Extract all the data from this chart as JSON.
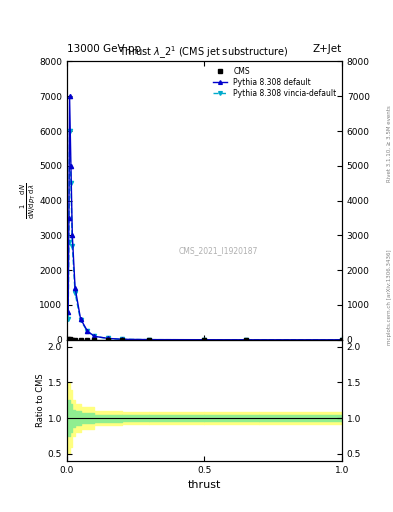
{
  "title_top": "13000 GeV pp",
  "title_right": "Z+Jet",
  "plot_title": "Thrust $\\lambda\\_2^1$ (CMS jet substructure)",
  "xlabel": "thrust",
  "ylabel_ratio": "Ratio to CMS",
  "right_label_top": "Rivet 3.1.10, ≥ 3.5M events",
  "right_label_bot": "mcplots.cern.ch [arXiv:1306.3436]",
  "watermark": "CMS_2021_I1920187",
  "cms_x": [
    0.003,
    0.006,
    0.01,
    0.015,
    0.02,
    0.03,
    0.05,
    0.075,
    0.1,
    0.15,
    0.2,
    0.3,
    0.5,
    0.65,
    1.0
  ],
  "cms_y": [
    5,
    10,
    12,
    8,
    5,
    3,
    2,
    1,
    1,
    0,
    0,
    0,
    0,
    0,
    0
  ],
  "pythia_default_x": [
    0.005,
    0.0075,
    0.01,
    0.015,
    0.02,
    0.03,
    0.05,
    0.075,
    0.1,
    0.15,
    0.2,
    0.3,
    0.5,
    0.65,
    1.0
  ],
  "pythia_default_y": [
    800,
    3500,
    7000,
    5000,
    3000,
    1500,
    600,
    250,
    100,
    40,
    15,
    5,
    2,
    0.5,
    0
  ],
  "pythia_vincia_x": [
    0.005,
    0.0075,
    0.01,
    0.015,
    0.02,
    0.03,
    0.05,
    0.075,
    0.1,
    0.15,
    0.2,
    0.3,
    0.5,
    0.65,
    1.0
  ],
  "pythia_vincia_y": [
    600,
    2800,
    6000,
    4500,
    2700,
    1350,
    560,
    240,
    95,
    38,
    13,
    4,
    1.5,
    0.3,
    0
  ],
  "ratio_yellow_edges": [
    0.0,
    0.005,
    0.01,
    0.02,
    0.03,
    0.05,
    0.1,
    0.2,
    0.3,
    0.5,
    0.7,
    1.0
  ],
  "ratio_yellow_upper": [
    1.3,
    1.5,
    1.4,
    1.25,
    1.2,
    1.15,
    1.1,
    1.08,
    1.08,
    1.08,
    1.08,
    1.08
  ],
  "ratio_yellow_lower": [
    0.7,
    0.5,
    0.6,
    0.75,
    0.8,
    0.85,
    0.9,
    0.92,
    0.92,
    0.92,
    0.92,
    0.92
  ],
  "ratio_green_edges": [
    0.0,
    0.005,
    0.01,
    0.02,
    0.03,
    0.05,
    0.1,
    0.2,
    0.3,
    0.5,
    0.7,
    1.0
  ],
  "ratio_green_upper": [
    1.15,
    1.25,
    1.2,
    1.12,
    1.1,
    1.07,
    1.05,
    1.04,
    1.04,
    1.04,
    1.04,
    1.04
  ],
  "ratio_green_lower": [
    0.85,
    0.75,
    0.8,
    0.88,
    0.9,
    0.93,
    0.95,
    0.96,
    0.96,
    0.96,
    0.96,
    0.96
  ],
  "ylim_main": [
    0,
    8000
  ],
  "ylim_ratio": [
    0.4,
    2.1
  ],
  "xlim": [
    0.0,
    1.0
  ],
  "color_default": "#0000cc",
  "color_vincia": "#00aacc",
  "color_cms": "black",
  "color_green": "#90ee90",
  "color_yellow": "#ffff80",
  "yticks_main": [
    0,
    1000,
    2000,
    3000,
    4000,
    5000,
    6000,
    7000,
    8000
  ],
  "yticks_ratio": [
    0.5,
    1.0,
    1.5,
    2.0
  ],
  "xticks": [
    0.0,
    0.5,
    1.0
  ]
}
